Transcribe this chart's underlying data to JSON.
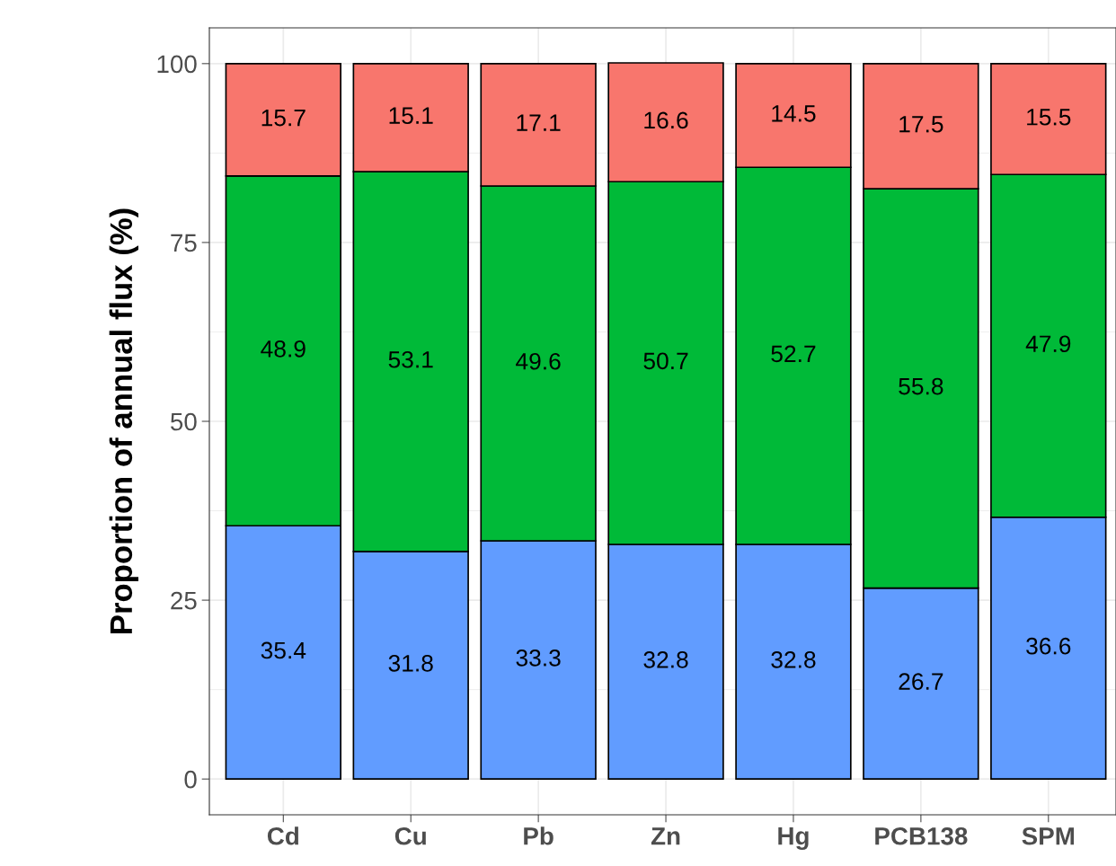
{
  "chart_data": {
    "type": "bar",
    "stacked": true,
    "ylabel": "Proportion of annual flux (%)",
    "categories": [
      "Cd",
      "Cu",
      "Pb",
      "Zn",
      "Hg",
      "PCB138",
      "SPM"
    ],
    "series": [
      {
        "color": "#619cff",
        "values": [
          35.4,
          31.8,
          33.3,
          32.8,
          32.8,
          26.7,
          36.6
        ]
      },
      {
        "color": "#00ba38",
        "values": [
          48.9,
          53.1,
          49.6,
          50.7,
          52.7,
          55.8,
          47.9
        ]
      },
      {
        "color": "#f8766d",
        "values": [
          15.7,
          15.1,
          17.1,
          16.6,
          14.5,
          17.5,
          15.5
        ]
      }
    ],
    "ylim": [
      -5,
      105
    ],
    "yticks": [
      0,
      25,
      50,
      75,
      100
    ],
    "grid": true,
    "data_labels": true
  }
}
